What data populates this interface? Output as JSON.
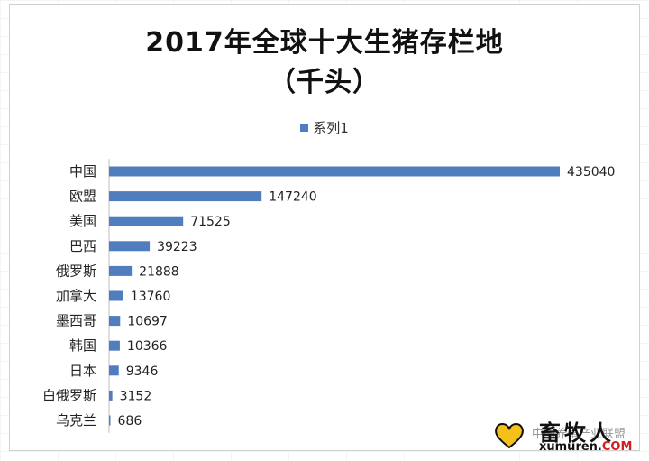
{
  "chart_data": {
    "type": "bar",
    "orientation": "horizontal",
    "title": "2017年全球十大生猪存栏地",
    "subtitle": "（千头）",
    "categories": [
      "中国",
      "欧盟",
      "美国",
      "巴西",
      "俄罗斯",
      "加拿大",
      "墨西哥",
      "韩国",
      "日本",
      "白俄罗斯",
      "乌克兰"
    ],
    "series": [
      {
        "name": "系列1",
        "values": [
          435040,
          147240,
          71525,
          39223,
          21888,
          13760,
          10697,
          10366,
          9346,
          3152,
          686
        ]
      }
    ],
    "legend_position": "top",
    "gridlines": false,
    "color": "#4f7dbd"
  },
  "watermark": {
    "cn_text": "中国养殖产业联盟",
    "logo_text": "畜牧人",
    "url_text": "xumuren.",
    "url_suffix": "COM"
  }
}
